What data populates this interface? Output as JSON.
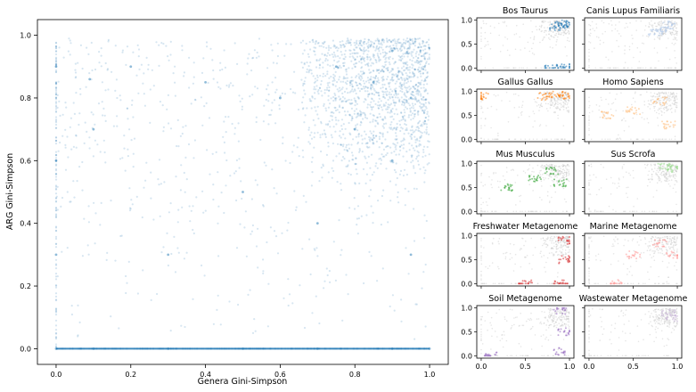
{
  "chart_data": [
    {
      "type": "scatter",
      "xlabel": "Genera Gini-Simpson",
      "ylabel": "ARG Gini-Simpson",
      "xlim": [
        -0.05,
        1.05
      ],
      "ylim": [
        -0.05,
        1.05
      ],
      "xticks": [
        "0.0",
        "0.2",
        "0.4",
        "0.6",
        "0.8",
        "1.0"
      ],
      "yticks": [
        "0.0",
        "0.2",
        "0.4",
        "0.6",
        "0.8",
        "1.0"
      ],
      "series": [
        {
          "color": "#1f77b4",
          "description_points": [
            {
              "x": 0.0,
              "y": 0.0
            },
            {
              "x": 0.1,
              "y": 0.0
            },
            {
              "x": 0.3,
              "y": 0.0
            },
            {
              "x": 0.5,
              "y": 0.0
            },
            {
              "x": 0.7,
              "y": 0.0
            },
            {
              "x": 0.9,
              "y": 0.0
            },
            {
              "x": 1.0,
              "y": 0.0
            },
            {
              "x": 0.0,
              "y": 0.3
            },
            {
              "x": 0.0,
              "y": 0.6
            },
            {
              "x": 0.0,
              "y": 0.9
            },
            {
              "x": 0.75,
              "y": 0.9
            },
            {
              "x": 0.85,
              "y": 0.85
            },
            {
              "x": 0.9,
              "y": 0.95
            },
            {
              "x": 0.95,
              "y": 0.8
            },
            {
              "x": 0.8,
              "y": 0.7
            },
            {
              "x": 0.9,
              "y": 0.6
            },
            {
              "x": 0.6,
              "y": 0.8
            },
            {
              "x": 0.4,
              "y": 0.85
            },
            {
              "x": 0.2,
              "y": 0.9
            },
            {
              "x": 0.5,
              "y": 0.5
            },
            {
              "x": 0.3,
              "y": 0.3
            },
            {
              "x": 0.7,
              "y": 0.4
            },
            {
              "x": 0.95,
              "y": 0.3
            },
            {
              "x": 0.1,
              "y": 0.7
            },
            {
              "x": 0.09,
              "y": 0.86
            }
          ]
        }
      ],
      "grid": false
    },
    {
      "type": "scatter",
      "title": "Bos Taurus",
      "highlight_color": "#1f77b4",
      "xlim": [
        -0.05,
        1.05
      ],
      "ylim": [
        -0.05,
        1.05
      ],
      "yticks": [
        "0.0",
        "0.5",
        "1.0"
      ],
      "highlight_points": [
        {
          "x": 0.9,
          "y": 0.93
        },
        {
          "x": 0.95,
          "y": 0.9
        },
        {
          "x": 0.85,
          "y": 0.85
        },
        {
          "x": 0.8,
          "y": 0.0
        },
        {
          "x": 0.95,
          "y": 0.0
        }
      ]
    },
    {
      "type": "scatter",
      "title": "Canis Lupus Familiaris",
      "highlight_color": "#aec7e8",
      "xlim": [
        -0.05,
        1.05
      ],
      "ylim": [
        -0.05,
        1.05
      ],
      "highlight_points": [
        {
          "x": 0.85,
          "y": 0.8
        },
        {
          "x": 0.9,
          "y": 0.9
        },
        {
          "x": 0.75,
          "y": 0.75
        }
      ]
    },
    {
      "type": "scatter",
      "title": "Gallus Gallus",
      "highlight_color": "#ff7f0e",
      "xlim": [
        -0.05,
        1.05
      ],
      "ylim": [
        -0.05,
        1.05
      ],
      "yticks": [
        "0.0",
        "0.5",
        "1.0"
      ],
      "highlight_points": [
        {
          "x": 0.7,
          "y": 0.9
        },
        {
          "x": 0.85,
          "y": 0.95
        },
        {
          "x": 0.95,
          "y": 0.92
        },
        {
          "x": 0.0,
          "y": 0.9
        }
      ]
    },
    {
      "type": "scatter",
      "title": "Homo Sapiens",
      "highlight_color": "#ffbb78",
      "xlim": [
        -0.05,
        1.05
      ],
      "ylim": [
        -0.05,
        1.05
      ],
      "highlight_points": [
        {
          "x": 0.5,
          "y": 0.6
        },
        {
          "x": 0.8,
          "y": 0.8
        },
        {
          "x": 0.2,
          "y": 0.5
        },
        {
          "x": 0.9,
          "y": 0.3
        }
      ]
    },
    {
      "type": "scatter",
      "title": "Mus Musculus",
      "highlight_color": "#2ca02c",
      "xlim": [
        -0.05,
        1.05
      ],
      "ylim": [
        -0.05,
        1.05
      ],
      "yticks": [
        "0.0",
        "0.5",
        "1.0"
      ],
      "highlight_points": [
        {
          "x": 0.8,
          "y": 0.85
        },
        {
          "x": 0.6,
          "y": 0.7
        },
        {
          "x": 0.9,
          "y": 0.6
        },
        {
          "x": 0.3,
          "y": 0.5
        }
      ]
    },
    {
      "type": "scatter",
      "title": "Sus Scrofa",
      "highlight_color": "#98df8a",
      "xlim": [
        -0.05,
        1.05
      ],
      "ylim": [
        -0.05,
        1.05
      ],
      "highlight_points": [
        {
          "x": 0.85,
          "y": 0.95
        },
        {
          "x": 0.95,
          "y": 0.9
        }
      ]
    },
    {
      "type": "scatter",
      "title": "Freshwater Metagenome",
      "highlight_color": "#d62728",
      "xlim": [
        -0.05,
        1.05
      ],
      "ylim": [
        -0.05,
        1.05
      ],
      "yticks": [
        "0.0",
        "0.5",
        "1.0"
      ],
      "highlight_points": [
        {
          "x": 0.95,
          "y": 0.9
        },
        {
          "x": 0.95,
          "y": 0.5
        },
        {
          "x": 0.9,
          "y": 0.0
        },
        {
          "x": 0.5,
          "y": 0.0
        }
      ]
    },
    {
      "type": "scatter",
      "title": "Marine Metagenome",
      "highlight_color": "#ff9896",
      "xlim": [
        -0.05,
        1.05
      ],
      "ylim": [
        -0.05,
        1.05
      ],
      "highlight_points": [
        {
          "x": 0.8,
          "y": 0.85
        },
        {
          "x": 0.95,
          "y": 0.6
        },
        {
          "x": 0.5,
          "y": 0.6
        },
        {
          "x": 0.3,
          "y": 0.0
        }
      ]
    },
    {
      "type": "scatter",
      "title": "Soil Metagenome",
      "highlight_color": "#9467bd",
      "xlim": [
        -0.05,
        1.05
      ],
      "ylim": [
        -0.05,
        1.05
      ],
      "xticks": [
        "0.0",
        "0.5",
        "1.0"
      ],
      "yticks": [
        "0.0",
        "0.5",
        "1.0"
      ],
      "highlight_points": [
        {
          "x": 0.9,
          "y": 0.95
        },
        {
          "x": 0.95,
          "y": 0.5
        },
        {
          "x": 0.9,
          "y": 0.1
        },
        {
          "x": 0.1,
          "y": 0.0
        }
      ]
    },
    {
      "type": "scatter",
      "title": "Wastewater Metagenome",
      "highlight_color": "#c5b0d5",
      "xlim": [
        -0.05,
        1.05
      ],
      "ylim": [
        -0.05,
        1.05
      ],
      "xticks": [
        "0.0",
        "0.5",
        "1.0"
      ],
      "highlight_points": [
        {
          "x": 0.9,
          "y": 0.9
        },
        {
          "x": 0.95,
          "y": 0.8
        }
      ]
    }
  ]
}
